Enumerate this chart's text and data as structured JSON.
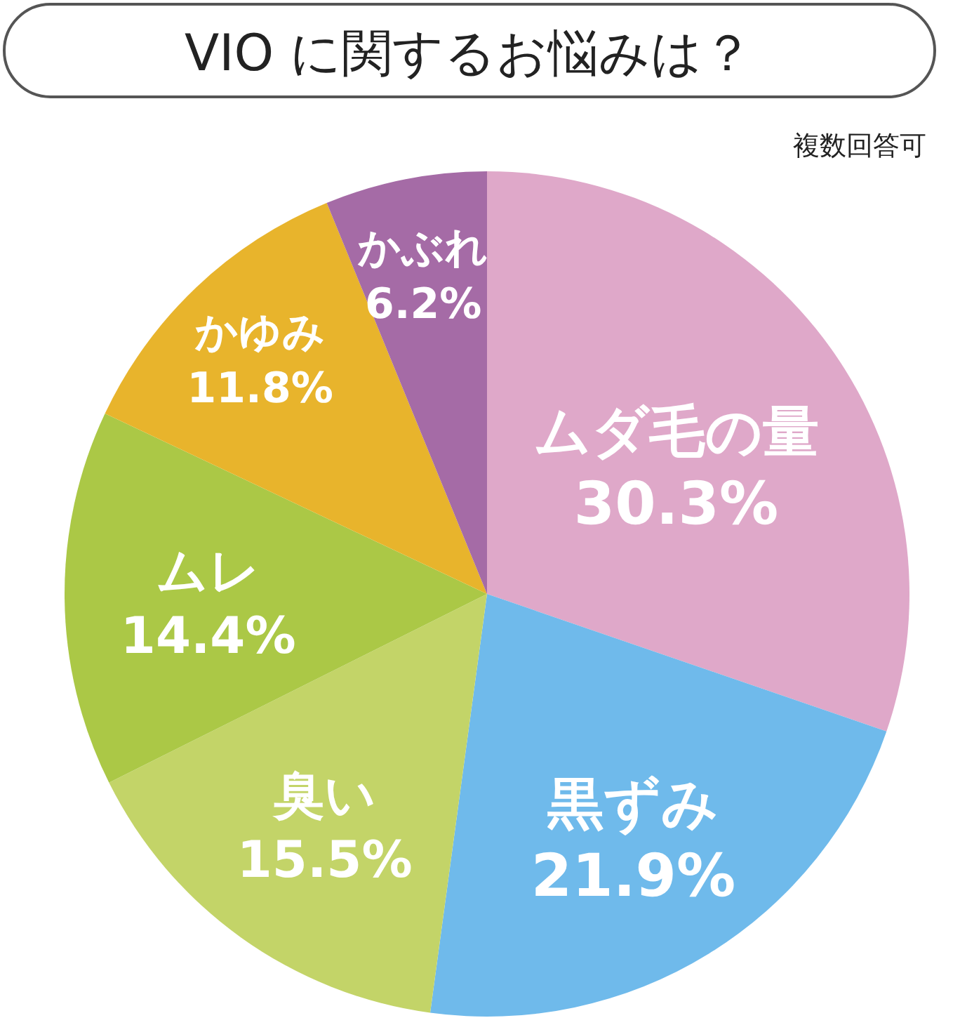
{
  "chart_data": {
    "type": "pie",
    "title": "VIO に関するお悩みは？",
    "annotations": [
      "複数回答可"
    ],
    "categories": [
      "ムダ毛の量",
      "黒ずみ",
      "臭い",
      "ムレ",
      "かゆみ",
      "かぶれ"
    ],
    "values": [
      30.3,
      21.9,
      15.5,
      14.4,
      11.8,
      6.2
    ],
    "value_labels": [
      "30.3%",
      "21.9%",
      "15.5%",
      "14.4%",
      "11.8%",
      "6.2%"
    ],
    "colors": [
      "#dfa8c9",
      "#6fbaeb",
      "#c3d468",
      "#abc846",
      "#e8b42c",
      "#a56ba6"
    ]
  }
}
